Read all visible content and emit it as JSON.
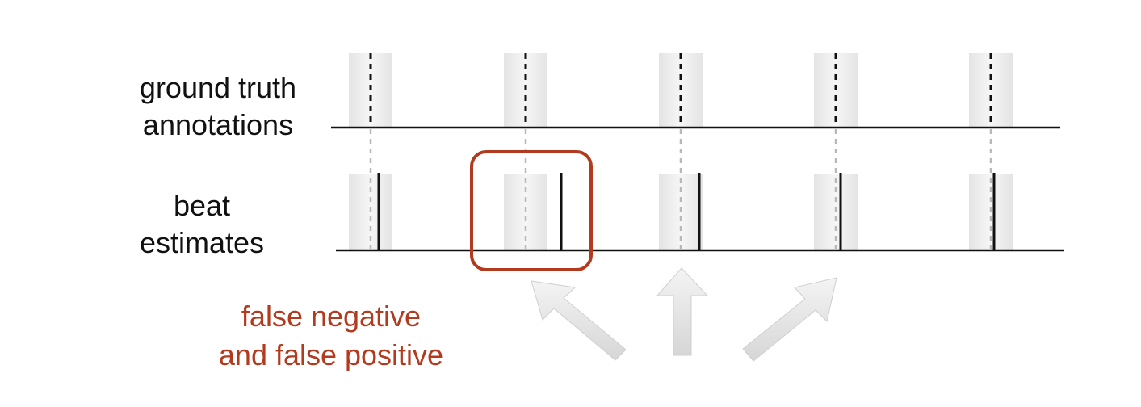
{
  "labels": {
    "ground_truth": [
      "ground truth",
      "annotations"
    ],
    "estimates": [
      "beat",
      "estimates"
    ]
  },
  "annotation": {
    "text": [
      "false negative",
      "and false positive"
    ],
    "color": "#b23a1e"
  },
  "beats": {
    "ground_truth": [
      1,
      2,
      3,
      4,
      5
    ],
    "estimated_offsets": [
      {
        "beat": 1,
        "offset": "late"
      },
      {
        "beat": 2,
        "offset": "missed"
      },
      {
        "beat": 3,
        "offset": "late"
      },
      {
        "beat": 4,
        "offset": "on"
      },
      {
        "beat": 5,
        "offset": "on"
      }
    ],
    "extra_estimate": {
      "after_beat": 2
    }
  },
  "highlight": {
    "around_beat": 2,
    "color": "#b23a1e"
  },
  "arrows": {
    "count": 3,
    "color": "#e0e0e0"
  }
}
